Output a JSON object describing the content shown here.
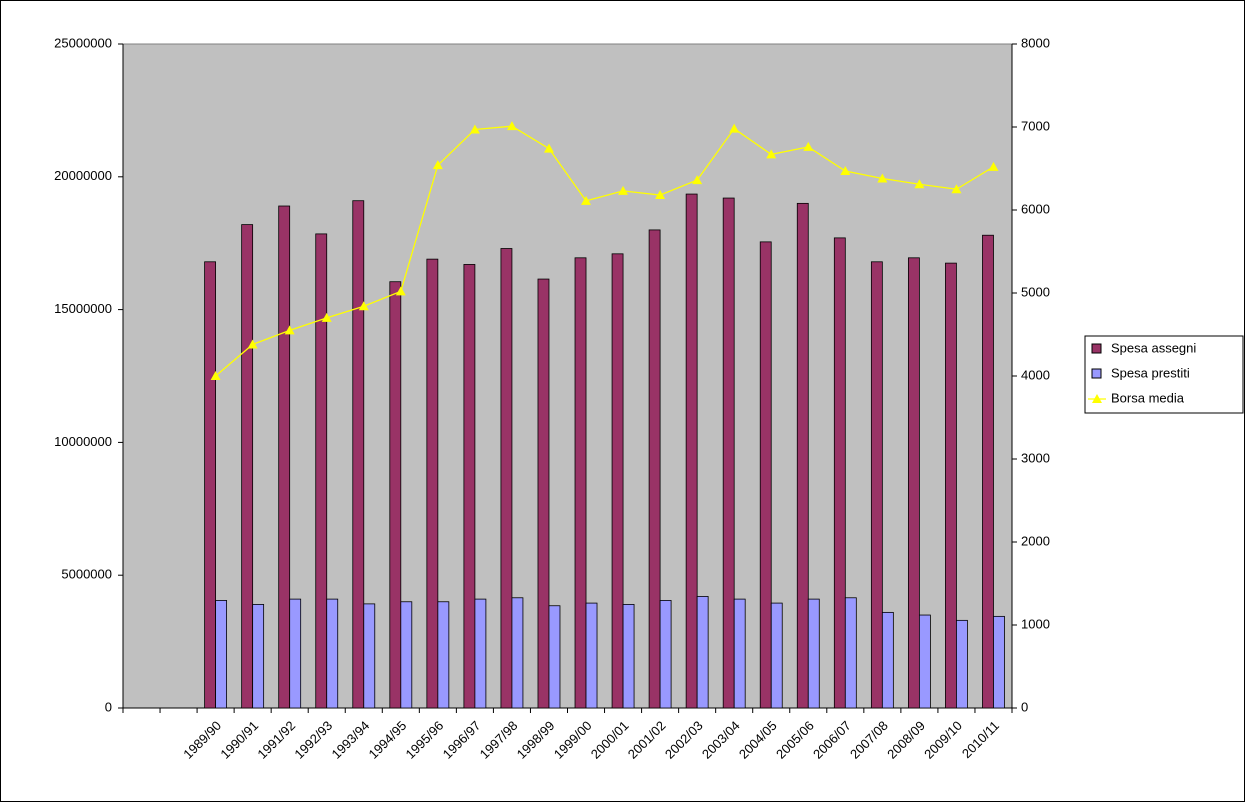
{
  "chart_data": {
    "type": "bar",
    "categories": [
      null,
      null,
      "1989/90",
      "1990/91",
      "1991/92",
      "1992/93",
      "1993/94",
      "1994/95",
      "1995/96",
      "1996/97",
      "1997/98",
      "1998/99",
      "1999/00",
      "2000/01",
      "2001/02",
      "2002/03",
      "2003/04",
      "2004/05",
      "2005/06",
      "2006/07",
      "2007/08",
      "2008/09",
      "2009/10",
      "2010/11"
    ],
    "series": [
      {
        "name": "Spesa assegni",
        "color": "#993366",
        "type": "bar",
        "values": [
          null,
          null,
          16800000,
          18200000,
          18900000,
          17850000,
          19100000,
          16050000,
          16900000,
          16700000,
          17300000,
          16150000,
          16950000,
          17100000,
          18000000,
          19350000,
          19200000,
          17550000,
          19000000,
          17700000,
          16800000,
          16950000,
          16750000,
          17800000
        ]
      },
      {
        "name": "Spesa prestiti",
        "color": "#9999ff",
        "type": "bar",
        "values": [
          null,
          null,
          4050000,
          3900000,
          4100000,
          4100000,
          3920000,
          4000000,
          4000000,
          4100000,
          4150000,
          3850000,
          3950000,
          3900000,
          4050000,
          4200000,
          4100000,
          3950000,
          4100000,
          4150000,
          3600000,
          3500000,
          3300000,
          3450000
        ]
      },
      {
        "name": "Borsa media",
        "color": "#ffff00",
        "type": "line",
        "axis": "y2",
        "values": [
          null,
          null,
          4000,
          4380,
          4550,
          4700,
          4840,
          5020,
          6540,
          6970,
          7010,
          6740,
          6110,
          6230,
          6180,
          6360,
          6980,
          6670,
          6760,
          6470,
          6380,
          6310,
          6250,
          6520
        ]
      }
    ],
    "ylim": [
      0,
      25000000
    ],
    "yticks": [
      0,
      5000000,
      10000000,
      15000000,
      20000000,
      25000000
    ],
    "y2lim": [
      0,
      8000
    ],
    "y2ticks": [
      0,
      1000,
      2000,
      3000,
      4000,
      5000,
      6000,
      7000,
      8000
    ],
    "grid": false,
    "legend": "right"
  }
}
